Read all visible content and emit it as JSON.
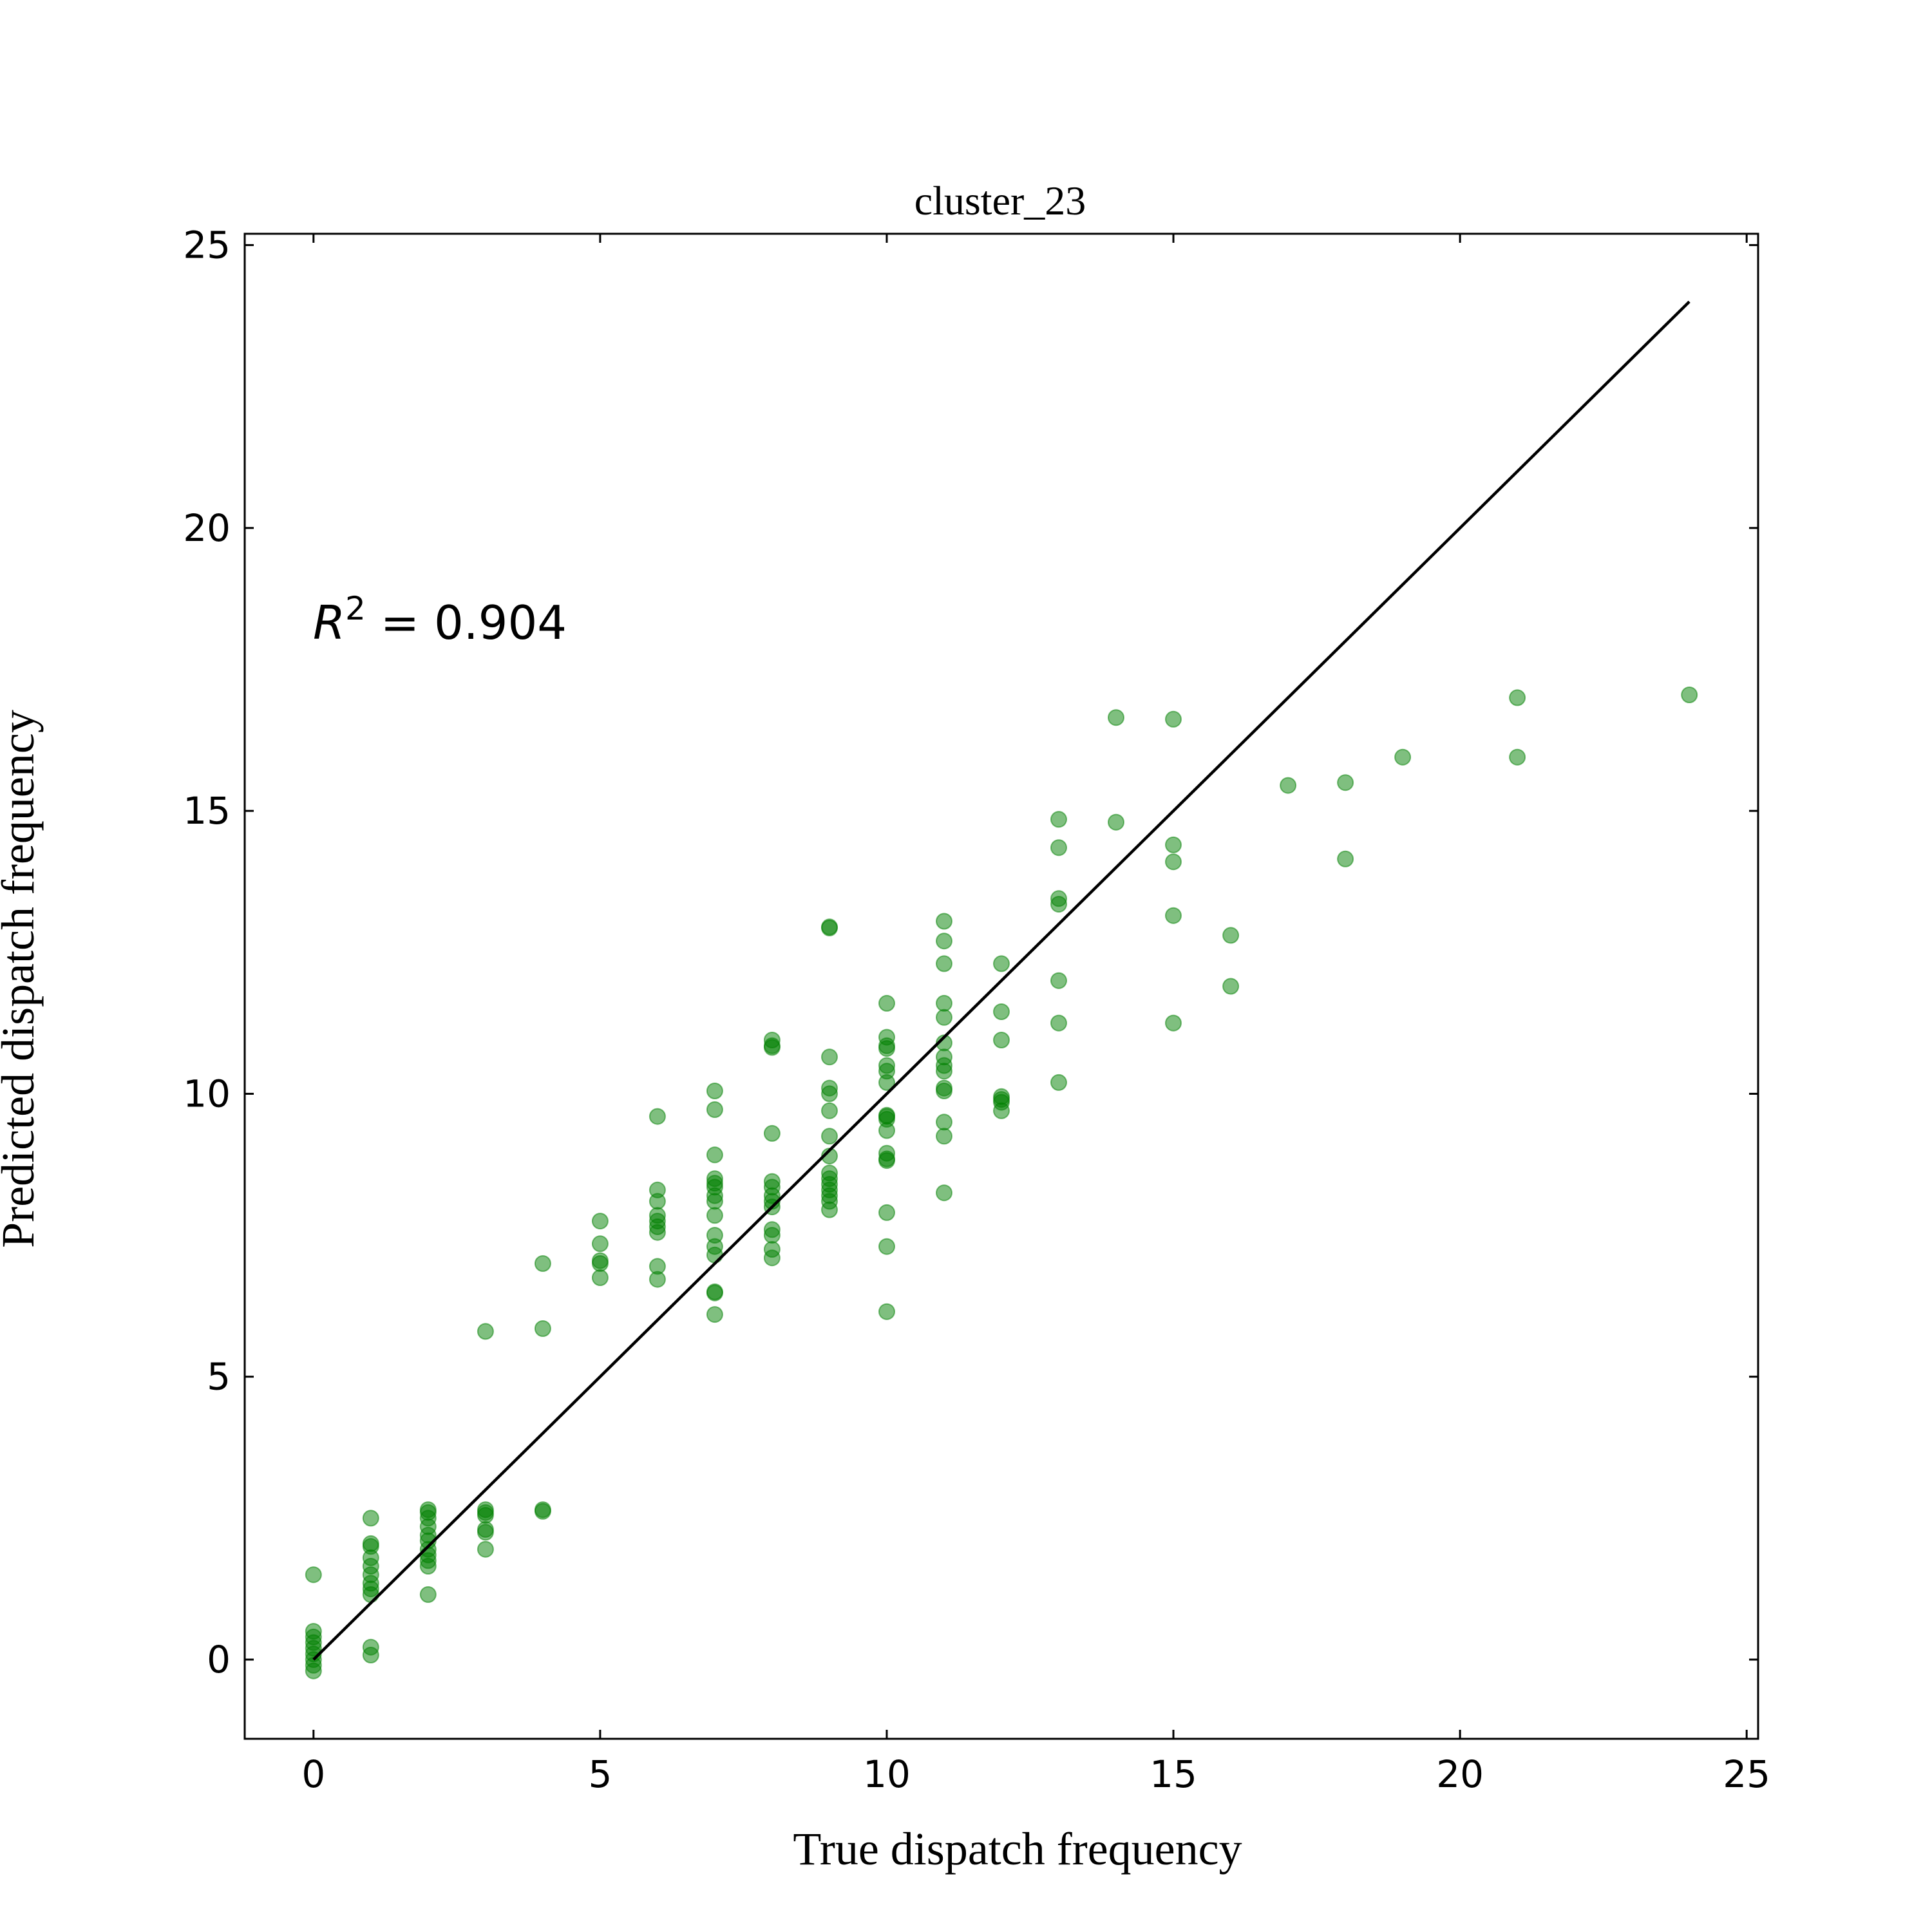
{
  "chart_data": {
    "type": "scatter",
    "title": "cluster_23",
    "xlabel": "True dispatch frequency",
    "ylabel": "Predicted dispatch frequency",
    "annotation": {
      "prefix": "R",
      "superscript": "2",
      "suffix": " = 0.904"
    },
    "xlim": [
      -1.2,
      25.2
    ],
    "ylim": [
      -1.4,
      25.2
    ],
    "x_ticks": [
      0,
      5,
      10,
      15,
      20,
      25
    ],
    "y_ticks": [
      0,
      5,
      10,
      15,
      20,
      25
    ],
    "grid": false,
    "point_color": "#008000",
    "point_alpha": 0.5,
    "line_color": "#000000",
    "reference_line": {
      "x": [
        0,
        24
      ],
      "y": [
        0,
        24
      ]
    },
    "points": [
      [
        0,
        1.5
      ],
      [
        0,
        0.5
      ],
      [
        0,
        0.4
      ],
      [
        0,
        0.3
      ],
      [
        0,
        0.2
      ],
      [
        0,
        0.1
      ],
      [
        0,
        0.0
      ],
      [
        0,
        -0.1
      ],
      [
        0,
        -0.2
      ],
      [
        1,
        2.5
      ],
      [
        1,
        2.05
      ],
      [
        1,
        2.0
      ],
      [
        1,
        1.8
      ],
      [
        1,
        1.65
      ],
      [
        1,
        1.5
      ],
      [
        1,
        1.35
      ],
      [
        1,
        1.25
      ],
      [
        1,
        1.15
      ],
      [
        1,
        0.22
      ],
      [
        1,
        0.08
      ],
      [
        2,
        2.65
      ],
      [
        2,
        2.6
      ],
      [
        2,
        2.5
      ],
      [
        2,
        2.35
      ],
      [
        2,
        2.2
      ],
      [
        2,
        2.1
      ],
      [
        2,
        1.95
      ],
      [
        2,
        1.85
      ],
      [
        2,
        1.75
      ],
      [
        2,
        1.65
      ],
      [
        2,
        1.15
      ],
      [
        3,
        5.8
      ],
      [
        3,
        2.65
      ],
      [
        3,
        2.6
      ],
      [
        3,
        2.55
      ],
      [
        3,
        2.3
      ],
      [
        3,
        2.25
      ],
      [
        3,
        1.95
      ],
      [
        4,
        7.0
      ],
      [
        4,
        5.85
      ],
      [
        4,
        2.65
      ],
      [
        4,
        2.62
      ],
      [
        5,
        7.75
      ],
      [
        5,
        7.35
      ],
      [
        5,
        7.05
      ],
      [
        5,
        7.0
      ],
      [
        5,
        6.75
      ],
      [
        6,
        9.6
      ],
      [
        6,
        8.3
      ],
      [
        6,
        8.1
      ],
      [
        6,
        7.85
      ],
      [
        6,
        7.75
      ],
      [
        6,
        7.65
      ],
      [
        6,
        7.55
      ],
      [
        6,
        6.95
      ],
      [
        6,
        6.72
      ],
      [
        7,
        10.05
      ],
      [
        7,
        9.72
      ],
      [
        7,
        8.92
      ],
      [
        7,
        8.5
      ],
      [
        7,
        8.42
      ],
      [
        7,
        8.35
      ],
      [
        7,
        8.2
      ],
      [
        7,
        8.1
      ],
      [
        7,
        7.85
      ],
      [
        7,
        7.5
      ],
      [
        7,
        7.3
      ],
      [
        7,
        7.15
      ],
      [
        7,
        6.5
      ],
      [
        7,
        6.48
      ],
      [
        7,
        6.1
      ],
      [
        8,
        10.95
      ],
      [
        8,
        10.85
      ],
      [
        8,
        10.82
      ],
      [
        8,
        9.3
      ],
      [
        8,
        8.45
      ],
      [
        8,
        8.35
      ],
      [
        8,
        8.2
      ],
      [
        8,
        8.1
      ],
      [
        8,
        8.0
      ],
      [
        8,
        7.6
      ],
      [
        8,
        7.5
      ],
      [
        8,
        7.25
      ],
      [
        8,
        7.1
      ],
      [
        9,
        12.95
      ],
      [
        9,
        12.93
      ],
      [
        9,
        10.65
      ],
      [
        9,
        10.1
      ],
      [
        9,
        10.0
      ],
      [
        9,
        9.7
      ],
      [
        9,
        9.25
      ],
      [
        9,
        8.9
      ],
      [
        9,
        8.6
      ],
      [
        9,
        8.5
      ],
      [
        9,
        8.4
      ],
      [
        9,
        8.3
      ],
      [
        9,
        8.2
      ],
      [
        9,
        8.1
      ],
      [
        9,
        7.95
      ],
      [
        10,
        11.6
      ],
      [
        10,
        11.0
      ],
      [
        10,
        10.85
      ],
      [
        10,
        10.8
      ],
      [
        10,
        10.5
      ],
      [
        10,
        10.4
      ],
      [
        10,
        10.2
      ],
      [
        10,
        9.62
      ],
      [
        10,
        9.6
      ],
      [
        10,
        9.55
      ],
      [
        10,
        9.35
      ],
      [
        10,
        8.95
      ],
      [
        10,
        8.85
      ],
      [
        10,
        8.82
      ],
      [
        10,
        7.9
      ],
      [
        10,
        7.3
      ],
      [
        10,
        6.15
      ],
      [
        11,
        13.05
      ],
      [
        11,
        12.7
      ],
      [
        11,
        12.3
      ],
      [
        11,
        11.6
      ],
      [
        11,
        11.35
      ],
      [
        11,
        10.9
      ],
      [
        11,
        10.65
      ],
      [
        11,
        10.5
      ],
      [
        11,
        10.4
      ],
      [
        11,
        10.1
      ],
      [
        11,
        10.05
      ],
      [
        11,
        9.5
      ],
      [
        11,
        9.25
      ],
      [
        11,
        8.25
      ],
      [
        12,
        12.3
      ],
      [
        12,
        11.45
      ],
      [
        12,
        10.95
      ],
      [
        12,
        9.95
      ],
      [
        12,
        9.9
      ],
      [
        12,
        9.85
      ],
      [
        12,
        9.7
      ],
      [
        13,
        14.85
      ],
      [
        13,
        14.35
      ],
      [
        13,
        13.45
      ],
      [
        13,
        13.35
      ],
      [
        13,
        12.0
      ],
      [
        13,
        11.25
      ],
      [
        13,
        10.2
      ],
      [
        14,
        16.65
      ],
      [
        14,
        14.8
      ],
      [
        15,
        16.62
      ],
      [
        15,
        14.4
      ],
      [
        15,
        14.1
      ],
      [
        15,
        13.15
      ],
      [
        15,
        11.25
      ],
      [
        16,
        12.8
      ],
      [
        16,
        11.9
      ],
      [
        17,
        15.45
      ],
      [
        18,
        15.5
      ],
      [
        18,
        14.15
      ],
      [
        19,
        15.95
      ],
      [
        21,
        17.0
      ],
      [
        21,
        15.95
      ],
      [
        24,
        17.05
      ]
    ]
  }
}
